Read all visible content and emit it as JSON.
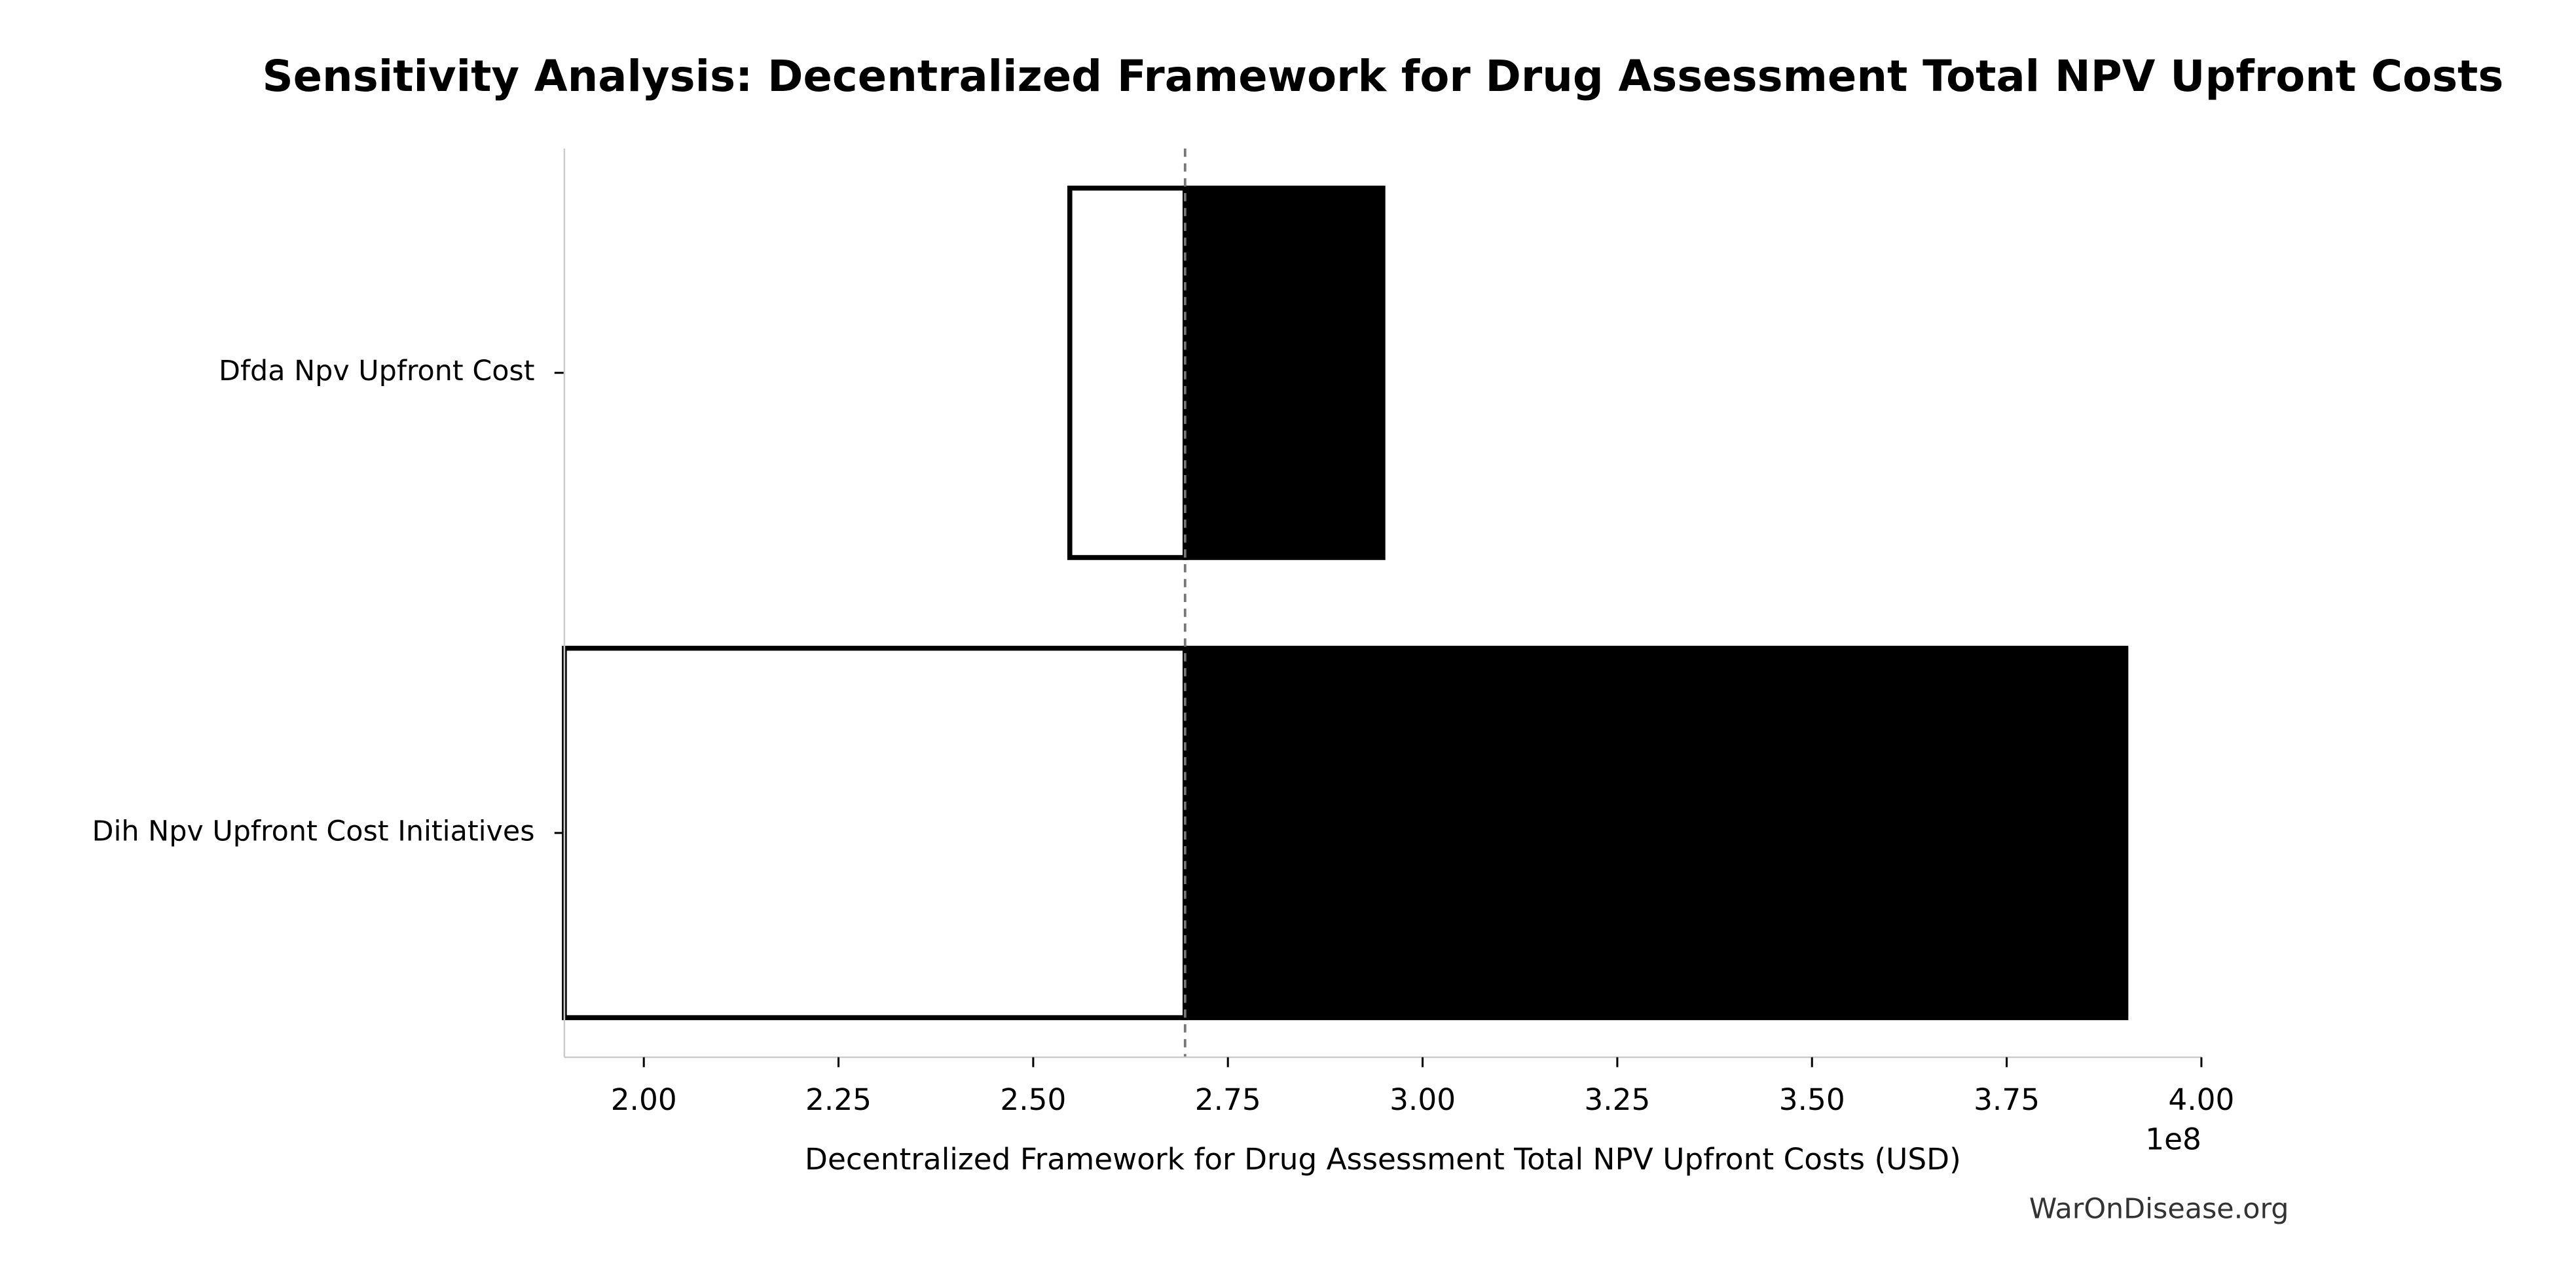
{
  "chart_data": {
    "type": "tornado",
    "title": "Sensitivity Analysis: Decentralized Framework for Drug Assessment Total NPV Upfront Costs",
    "x_label": "Decentralized Framework for Drug Assessment Total NPV Upfront Costs (USD)",
    "x_offset_label": "1e8",
    "watermark": "WarOnDisease.org",
    "categories": [
      "Dfda Npv Upfront Cost",
      "Dih Npv Upfront Cost Initiatives"
    ],
    "baseline": 2.695,
    "series": [
      {
        "color": "#ffffff",
        "values": [
          2.547,
          1.898
        ]
      },
      {
        "color": "#000000",
        "values": [
          2.949,
          3.903
        ]
      }
    ],
    "xlim": [
      1.898,
      4.0
    ],
    "xticks": [
      {
        "value": 2.0,
        "label": "2.00"
      },
      {
        "value": 2.25,
        "label": "2.25"
      },
      {
        "value": 2.5,
        "label": "2.50"
      },
      {
        "value": 2.75,
        "label": "2.75"
      },
      {
        "value": 3.0,
        "label": "3.00"
      },
      {
        "value": 3.25,
        "label": "3.25"
      },
      {
        "value": 3.5,
        "label": "3.50"
      },
      {
        "value": 3.75,
        "label": "3.75"
      },
      {
        "value": 4.0,
        "label": "4.00"
      }
    ]
  }
}
